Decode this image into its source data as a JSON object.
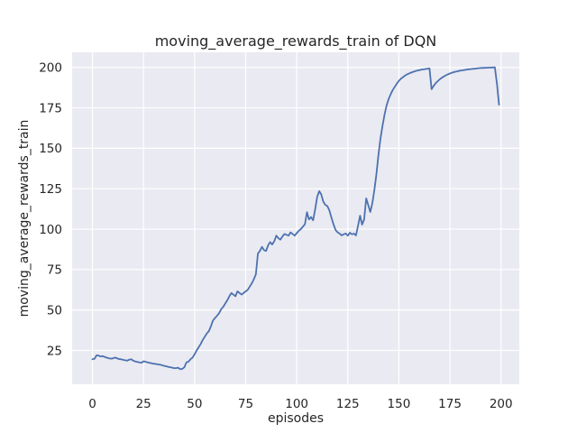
{
  "chart_data": {
    "type": "line",
    "title": "moving_average_rewards_train of DQN",
    "xlabel": "episodes",
    "ylabel": "moving_average_rewards_train",
    "x_ticks": [
      0,
      25,
      50,
      75,
      100,
      125,
      150,
      175,
      200
    ],
    "y_ticks": [
      25,
      50,
      75,
      100,
      125,
      150,
      175,
      200
    ],
    "xlim": [
      -9.95,
      208.95
    ],
    "ylim": [
      4.07,
      209.33
    ],
    "grid": true,
    "legend": "none",
    "colors": {
      "line": "#4c72b0",
      "axes_background": "#eaeaf2",
      "grid": "#ffffff",
      "text": "#262626",
      "figure_background": "#ffffff"
    },
    "series": [
      {
        "name": "moving_average_rewards_train",
        "x_start": 0,
        "x_step": 1,
        "y": [
          19.5,
          19.8,
          22.0,
          21.8,
          21.3,
          21.5,
          21.0,
          20.5,
          20.2,
          19.9,
          20.1,
          20.6,
          20.2,
          19.7,
          19.5,
          19.2,
          18.9,
          18.7,
          19.3,
          19.5,
          18.6,
          18.2,
          17.9,
          17.6,
          17.4,
          18.3,
          18.0,
          17.6,
          17.3,
          17.0,
          16.8,
          16.6,
          16.4,
          16.2,
          15.9,
          15.5,
          15.2,
          14.9,
          14.6,
          14.4,
          14.0,
          14.1,
          14.3,
          13.4,
          13.6,
          14.6,
          17.6,
          18.0,
          19.6,
          20.6,
          22.6,
          25.0,
          27.0,
          29.0,
          31.5,
          33.5,
          35.5,
          37.0,
          40.0,
          43.5,
          45.0,
          46.5,
          48.0,
          50.5,
          52.0,
          54.0,
          56.0,
          58.5,
          60.5,
          59.5,
          58.5,
          61.5,
          60.5,
          59.5,
          60.5,
          61.5,
          62.5,
          64.5,
          66.5,
          69.0,
          72.0,
          85.0,
          86.5,
          89.0,
          87.0,
          86.5,
          90.0,
          92.0,
          90.5,
          92.5,
          96.0,
          94.5,
          93.5,
          95.5,
          97.0,
          96.5,
          96.0,
          98.0,
          97.0,
          96.0,
          97.5,
          99.0,
          100.0,
          101.5,
          103.0,
          110.5,
          106.0,
          107.5,
          105.5,
          112.0,
          120.0,
          123.5,
          121.5,
          117.0,
          115.0,
          114.3,
          111.5,
          107.0,
          103.0,
          99.5,
          98.0,
          97.3,
          96.1,
          96.8,
          97.3,
          96.0,
          97.8,
          96.8,
          97.2,
          96.1,
          102.0,
          108.3,
          102.8,
          106.0,
          119.0,
          115.0,
          110.6,
          116.0,
          124.0,
          134.0,
          146.0,
          156.0,
          164.0,
          171.0,
          176.5,
          180.5,
          183.5,
          186.0,
          188.0,
          190.0,
          191.7,
          193.0,
          194.0,
          194.9,
          195.7,
          196.3,
          196.8,
          197.3,
          197.7,
          198.0,
          198.3,
          198.6,
          198.8,
          199.0,
          199.2,
          199.4,
          186.5,
          188.5,
          190.2,
          191.5,
          192.6,
          193.6,
          194.4,
          195.1,
          195.7,
          196.2,
          196.7,
          197.1,
          197.4,
          197.7,
          198.0,
          198.2,
          198.4,
          198.6,
          198.8,
          198.9,
          199.1,
          199.2,
          199.35,
          199.5,
          199.6,
          199.7,
          199.75,
          199.8,
          199.85,
          199.9,
          199.95,
          200.0,
          190.0,
          177.0
        ]
      }
    ]
  }
}
